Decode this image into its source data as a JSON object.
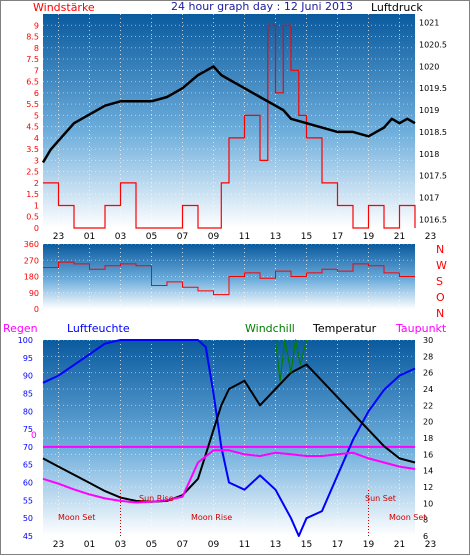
{
  "colors": {
    "wind": "#ff0000",
    "pressure": "#000000",
    "header_title": "#1c1ca0",
    "humidity": "#0000ff",
    "windchill": "#008000",
    "temperature": "#000000",
    "dewpoint": "#ff00ff",
    "annotation": "#cc0000",
    "sky_top": "#0a5a9e",
    "sky_bottom": "#ffffff"
  },
  "chart_data": [
    {
      "type": "line",
      "title": "24 hour graph day : 12 Juni 2013",
      "left_label": "Windstärke",
      "right_label": "Luftdruck",
      "x_ticks": [
        "23",
        "01",
        "03",
        "05",
        "07",
        "09",
        "11",
        "13",
        "15",
        "17",
        "19",
        "21",
        "23"
      ],
      "y_left_ticks": [
        "0",
        "0.5",
        "1",
        "1.5",
        "2",
        "2.5",
        "3",
        "3.5",
        "4",
        "4.5",
        "5",
        "5.5",
        "6",
        "6.5",
        "7",
        "7.5",
        "8",
        "8.5",
        "9"
      ],
      "y_right_ticks": [
        "1016.5",
        "1017",
        "1017.5",
        "1018",
        "1018.5",
        "1019",
        "1019.5",
        "1020",
        "1020.5",
        "1021"
      ],
      "y_left_range": [
        0,
        9.5
      ],
      "y_right_range": [
        1016.3,
        1021.2
      ],
      "x_range": [
        22,
        46
      ],
      "grid": true,
      "series": [
        {
          "name": "Luftdruck",
          "axis": "right",
          "x": [
            22,
            22.5,
            23,
            24,
            25,
            26,
            27,
            28,
            29,
            30,
            31,
            32,
            32.5,
            33,
            33.5,
            34,
            35,
            36,
            37,
            37.5,
            38,
            39,
            40,
            41,
            42,
            43,
            44,
            44.5,
            45,
            45.5,
            46
          ],
          "y": [
            1017.8,
            1018.1,
            1018.3,
            1018.7,
            1018.9,
            1019.1,
            1019.2,
            1019.2,
            1019.2,
            1019.3,
            1019.5,
            1019.8,
            1019.9,
            1020.0,
            1019.8,
            1019.7,
            1019.5,
            1019.3,
            1019.1,
            1019.0,
            1018.8,
            1018.7,
            1018.6,
            1018.5,
            1018.5,
            1018.4,
            1018.6,
            1018.8,
            1018.7,
            1018.8,
            1018.7
          ]
        },
        {
          "name": "Windstärke",
          "axis": "left",
          "x": [
            22,
            23,
            24,
            25,
            26,
            27,
            28,
            29,
            30,
            31,
            32,
            33,
            33.5,
            34,
            35,
            36,
            36.5,
            37,
            37.5,
            38,
            38.5,
            39,
            40,
            41,
            42,
            43,
            44,
            45,
            46
          ],
          "y": [
            2,
            1,
            0,
            0,
            1,
            2,
            0,
            0,
            0,
            1,
            0,
            0,
            2,
            4,
            5,
            3,
            9,
            6,
            9,
            7,
            5,
            4,
            2,
            1,
            0,
            1,
            0,
            1,
            0
          ]
        }
      ]
    },
    {
      "type": "line",
      "title": "",
      "right_label": "",
      "direction_labels": [
        "N",
        "W",
        "S",
        "O",
        "N"
      ],
      "y_ticks": [
        "360",
        "270",
        "180",
        "90",
        "0"
      ],
      "y_range": [
        0,
        360
      ],
      "x_range": [
        22,
        46
      ],
      "grid": true,
      "series": [
        {
          "name": "Windrichtung",
          "x": [
            22,
            23,
            24,
            25,
            26,
            27,
            28,
            29,
            30,
            31,
            32,
            33,
            34,
            35,
            36,
            37,
            38,
            39,
            40,
            41,
            42,
            43,
            44,
            45,
            46
          ],
          "y": [
            230,
            260,
            250,
            220,
            240,
            250,
            240,
            130,
            150,
            120,
            100,
            80,
            180,
            200,
            170,
            210,
            180,
            200,
            220,
            210,
            250,
            240,
            200,
            180,
            180
          ]
        }
      ]
    },
    {
      "type": "line",
      "title": "",
      "left_label": "Regen",
      "legend": [
        "Luftfeuchte",
        "Windchill",
        "Temperatur",
        "Taupunkt"
      ],
      "x_ticks": [
        "23",
        "01",
        "03",
        "05",
        "07",
        "09",
        "11",
        "13",
        "15",
        "17",
        "19",
        "21",
        "23"
      ],
      "y_left_ticks": [
        "45",
        "50",
        "55",
        "60",
        "65",
        "70",
        "75",
        "80",
        "85",
        "90",
        "95",
        "100"
      ],
      "y_right_ticks": [
        "6",
        "8",
        "10",
        "12",
        "14",
        "16",
        "18",
        "20",
        "22",
        "24",
        "26",
        "28",
        "30"
      ],
      "rain_label": "0",
      "y_left_range": [
        45,
        100
      ],
      "y_right_range": [
        6,
        30
      ],
      "x_range": [
        22,
        46
      ],
      "annotations": [
        "Sun Rise",
        "Sun Set",
        "Moon Set",
        "Moon Rise",
        "Moon Set"
      ],
      "series": [
        {
          "name": "Luftfeuchte",
          "axis": "left",
          "x": [
            22,
            23,
            24,
            25,
            26,
            27,
            28,
            29,
            30,
            31,
            32,
            32.5,
            33,
            33.5,
            34,
            35,
            36,
            37,
            38,
            38.5,
            39,
            40,
            41,
            42,
            43,
            44,
            45,
            46
          ],
          "y": [
            88,
            90,
            93,
            96,
            99,
            100,
            100,
            100,
            100,
            100,
            100,
            98,
            85,
            70,
            60,
            58,
            62,
            58,
            50,
            45,
            50,
            52,
            62,
            72,
            80,
            86,
            90,
            92
          ]
        },
        {
          "name": "Temperatur",
          "axis": "right",
          "x": [
            22,
            23,
            24,
            25,
            26,
            27,
            28,
            29,
            30,
            31,
            32,
            32.5,
            33,
            33.5,
            34,
            35,
            36,
            37,
            38,
            39,
            40,
            41,
            42,
            43,
            44,
            45,
            46
          ],
          "y": [
            15.5,
            14.5,
            13.5,
            12.5,
            11.5,
            10.7,
            10.3,
            10.2,
            10.3,
            11,
            13,
            16,
            19,
            22,
            24,
            25,
            22,
            24,
            26,
            27,
            25,
            23,
            21,
            19,
            17,
            15.5,
            15
          ]
        },
        {
          "name": "Taupunkt",
          "axis": "right",
          "x": [
            22,
            23,
            24,
            25,
            26,
            27,
            28,
            29,
            30,
            31,
            32,
            33,
            34,
            35,
            36,
            37,
            38,
            39,
            40,
            41,
            42,
            43,
            44,
            45,
            46
          ],
          "y": [
            13,
            12.4,
            11.7,
            11.1,
            10.6,
            10.3,
            10.1,
            10.2,
            10.4,
            10.8,
            15,
            16.5,
            16.5,
            16,
            15.8,
            16.2,
            16,
            15.8,
            15.8,
            16,
            16.2,
            15.5,
            15,
            14.5,
            14.2
          ]
        },
        {
          "name": "Windchill",
          "axis": "right",
          "x": [
            37,
            37.3,
            37.6,
            38,
            38.3,
            38.6,
            39
          ],
          "y": [
            30,
            25,
            30,
            26,
            30,
            27,
            30
          ]
        }
      ]
    }
  ]
}
